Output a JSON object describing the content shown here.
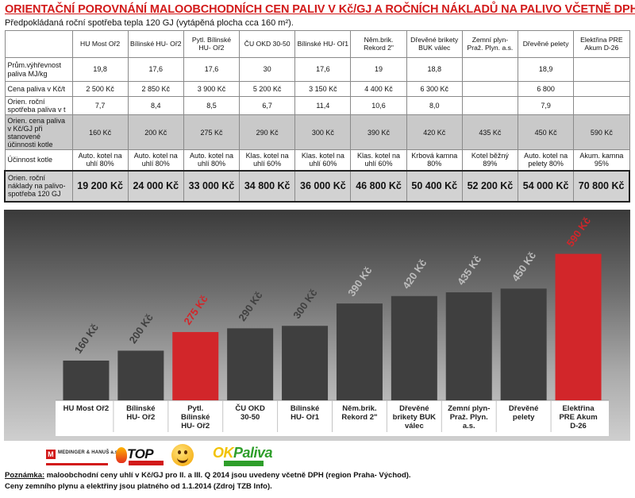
{
  "title": "ORIENTAČNÍ POROVNÁNÍ MALOOBCHODNÍCH CEN PALIV V Kč/GJ A ROČNÍCH NÁKLADŮ NA PALIVO VČETNĚ DPH",
  "subtitle": "Předpokládaná roční spotřeba tepla 120 GJ (vytápěná plocha cca 160 m²).",
  "table": {
    "columns": [
      "HU Most Oř2",
      "Bílinské HU- Oř2",
      "Pytl. Bílinské HU- Oř2",
      "ČU OKD 30-50",
      "Bílinské HU- Oř1",
      "Něm.brik. Rekord 2\"",
      "Dřevěné brikety BUK válec",
      "Zemní plyn- Praž. Plyn. a.s.",
      "Dřevěné pelety",
      "Elektřina PRE Akum D-26"
    ],
    "rows": [
      {
        "label": "Prům.výhřevnost paliva MJ/kg",
        "style": "white",
        "cells": [
          "19,8",
          "17,6",
          "17,6",
          "30",
          "17,6",
          "19",
          "18,8",
          "",
          "18,9",
          ""
        ]
      },
      {
        "label": "Cena paliva v Kč/t",
        "style": "white",
        "cells": [
          "2 500 Kč",
          "2 850 Kč",
          "3 900 Kč",
          "5 200 Kč",
          "3 150 Kč",
          "4 400 Kč",
          "6 300 Kč",
          "",
          "6 800",
          ""
        ]
      },
      {
        "label": "Orien. roční spotřeba paliva v t",
        "style": "white",
        "cells": [
          "7,7",
          "8,4",
          "8,5",
          "6,7",
          "11,4",
          "10,6",
          "8,0",
          "",
          "7,9",
          ""
        ]
      },
      {
        "label": "Orien. cena paliva v Kč/GJ při stanovené účinnosti kotle",
        "style": "gray",
        "cells": [
          "160 Kč",
          "200 Kč",
          "275 Kč",
          "290 Kč",
          "300 Kč",
          "390 Kč",
          "420 Kč",
          "435 Kč",
          "450 Kč",
          "590 Kč"
        ]
      },
      {
        "label": "Účinnost kotle",
        "style": "white",
        "cells": [
          "Auto. kotel na uhlí 80%",
          "Auto. kotel na uhlí 80%",
          "Auto. kotel na uhlí 80%",
          "Klas. kotel na uhlí 60%",
          "Klas. kotel na uhlí 60%",
          "Klas. kotel na uhlí 60%",
          "Krbová kamna 80%",
          "Kotel běžný 89%",
          "Auto. kotel na pelety 80%",
          "Akum. kamna 95%"
        ]
      },
      {
        "label": "Orien. roční náklady na palivo- spotřeba 120 GJ",
        "style": "total",
        "cells": [
          "19 200 Kč",
          "24 000 Kč",
          "33 000 Kč",
          "34 800 Kč",
          "36 000 Kč",
          "46 800 Kč",
          "50 400 Kč",
          "52 200 Kč",
          "54 000 Kč",
          "70 800 Kč"
        ]
      }
    ]
  },
  "chart_data": {
    "type": "bar",
    "categories": [
      "HU Most Oř2",
      "Bílinské HU- Oř2",
      "Pytl. Bílinské HU- Oř2",
      "ČU OKD 30-50",
      "Bílinské HU- Oř1",
      "Něm.brik. Rekord 2\"",
      "Dřevěné brikety BUK válec",
      "Zemní plyn- Praž. Plyn. a.s.",
      "Dřevěné pelety",
      "Elektřina PRE Akum D-26"
    ],
    "values": [
      160,
      200,
      275,
      290,
      300,
      390,
      420,
      435,
      450,
      590
    ],
    "data_labels": [
      "160 Kč",
      "200 Kč",
      "275 Kč",
      "290 Kč",
      "300 Kč",
      "390 Kč",
      "420 Kč",
      "435 Kč",
      "450 Kč",
      "590 Kč"
    ],
    "highlight": [
      false,
      false,
      true,
      false,
      false,
      false,
      false,
      false,
      false,
      true
    ],
    "title": "",
    "xlabel": "",
    "ylabel": "",
    "ylim": [
      0,
      640
    ],
    "grid": false,
    "colors": {
      "bar": "#3f3f3f",
      "highlight": "#d2262a",
      "label_dark": "#404040",
      "label_light": "#bdbdbd",
      "label_highlight": "#d2262a"
    }
  },
  "logos": {
    "mh_text": "MEDINGER & HANUŠ a.s.",
    "top_word": "TOP",
    "ok_word_a": "OK",
    "ok_word_b": "Paliva"
  },
  "note": {
    "label": "Poznámka:",
    "line1": " maloobchodní ceny uhlí v Kč/GJ pro II. a III. Q 2014 jsou uvedeny včetně DPH (region Praha- Východ).",
    "line2": "Ceny zemního plynu a elektřiny jsou platného od 1.1.2014 (Zdroj TZB Info)."
  }
}
